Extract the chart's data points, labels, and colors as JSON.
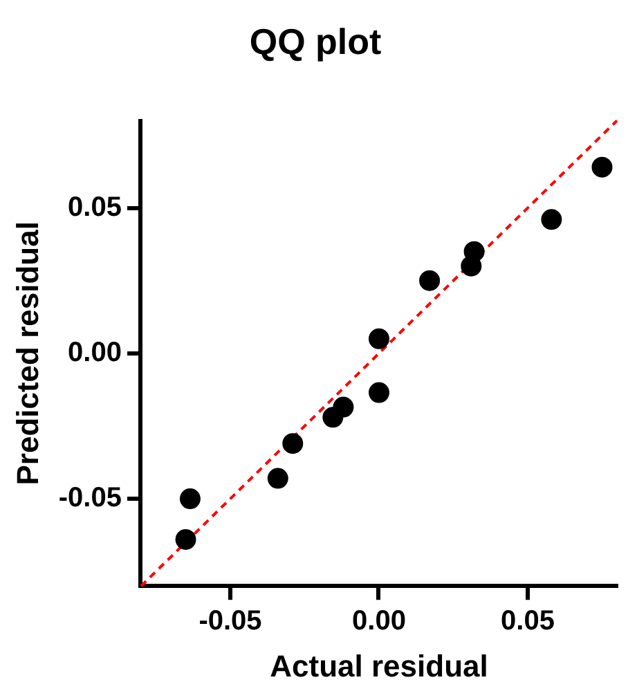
{
  "chart_data": {
    "type": "scatter",
    "title": "QQ plot",
    "xlabel": "Actual residual",
    "ylabel": "Predicted residual",
    "xlim": [
      -0.08,
      0.08
    ],
    "ylim": [
      -0.08,
      0.08
    ],
    "xticks": [
      {
        "value": -0.05,
        "label": "-0.05"
      },
      {
        "value": 0,
        "label": "0.00"
      },
      {
        "value": 0.05,
        "label": "0.05"
      }
    ],
    "yticks": [
      {
        "value": -0.05,
        "label": "-0.05"
      },
      {
        "value": 0,
        "label": "0.00"
      },
      {
        "value": 0.05,
        "label": "0.05"
      }
    ],
    "grid": false,
    "legend": false,
    "marker": "circle",
    "series": [
      {
        "type": "scatter",
        "color": "#000000",
        "x": [
          0.075,
          0.058,
          0.032,
          0.031,
          0.017,
          0.0,
          0.0,
          -0.012,
          -0.0155,
          -0.029,
          -0.034,
          -0.0635,
          -0.065
        ],
        "values": [
          0.064,
          0.046,
          0.035,
          0.03,
          0.025,
          0.005,
          -0.0135,
          -0.0185,
          -0.022,
          -0.031,
          -0.043,
          -0.05,
          -0.064
        ]
      },
      {
        "type": "line",
        "color": "#ff0000",
        "line_style": "dashed",
        "marker": "none",
        "x": [
          -0.08,
          0.08
        ],
        "values": [
          -0.08,
          0.08
        ]
      }
    ]
  }
}
